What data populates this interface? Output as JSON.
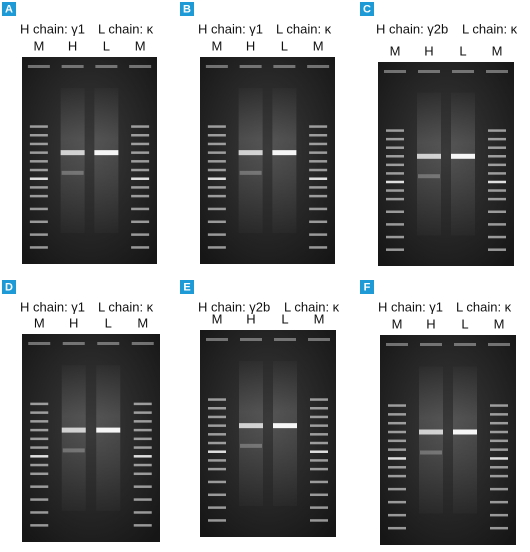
{
  "panels": [
    {
      "letter": "A",
      "h_chain": "H chain: γ1",
      "l_chain": "L chain: κ",
      "lanes": [
        "M",
        "H",
        "L",
        "M"
      ]
    },
    {
      "letter": "B",
      "h_chain": "H chain: γ1",
      "l_chain": "L chain: κ",
      "lanes": [
        "M",
        "H",
        "L",
        "M"
      ]
    },
    {
      "letter": "C",
      "h_chain": "H chain: γ2b",
      "l_chain": "L chain: κ",
      "lanes": [
        "M",
        "H",
        "L",
        "M"
      ]
    },
    {
      "letter": "D",
      "h_chain": "H chain: γ1",
      "l_chain": "L chain: κ",
      "lanes": [
        "M",
        "H",
        "L",
        "M"
      ]
    },
    {
      "letter": "E",
      "h_chain": "H chain: γ2b",
      "l_chain": "L chain: κ",
      "lanes": [
        "M",
        "H",
        "L",
        "M"
      ]
    },
    {
      "letter": "F",
      "h_chain": "H chain: γ1",
      "l_chain": "L chain: κ",
      "lanes": [
        "M",
        "H",
        "L",
        "M"
      ]
    }
  ]
}
